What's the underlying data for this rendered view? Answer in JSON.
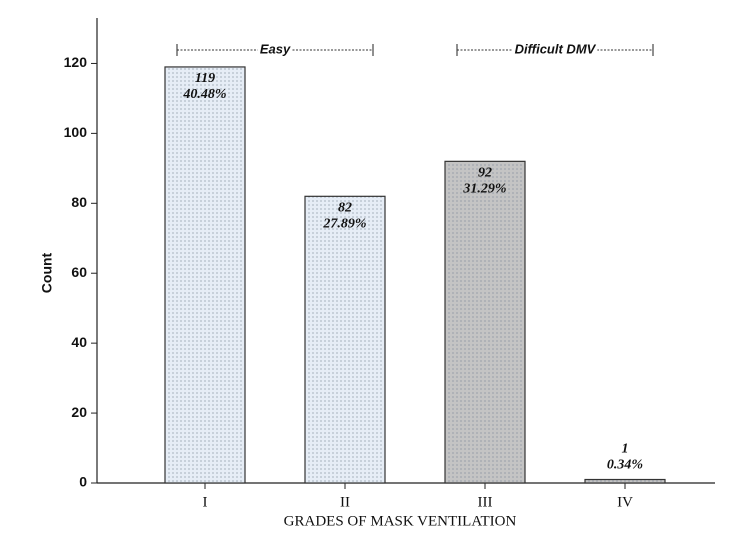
{
  "chart_data": {
    "type": "bar",
    "categories": [
      "I",
      "II",
      "III",
      "IV"
    ],
    "values": [
      119,
      82,
      92,
      1
    ],
    "percent_labels": [
      "40.48%",
      "27.89%",
      "31.29%",
      "0.34%"
    ],
    "colors": [
      "#e6edf6",
      "#e6edf6",
      "#c4c4c4",
      "#c4c4c4"
    ],
    "x_label": "GRADES OF MASK VENTILATION",
    "y_label": "Count",
    "ylim": [
      0,
      133
    ],
    "yticks": [
      0,
      20,
      40,
      60,
      80,
      100,
      120
    ],
    "annotations": [
      {
        "text": "Easy",
        "from": 0,
        "to": 1
      },
      {
        "text": "Difficult DMV",
        "from": 2,
        "to": 3
      }
    ]
  }
}
